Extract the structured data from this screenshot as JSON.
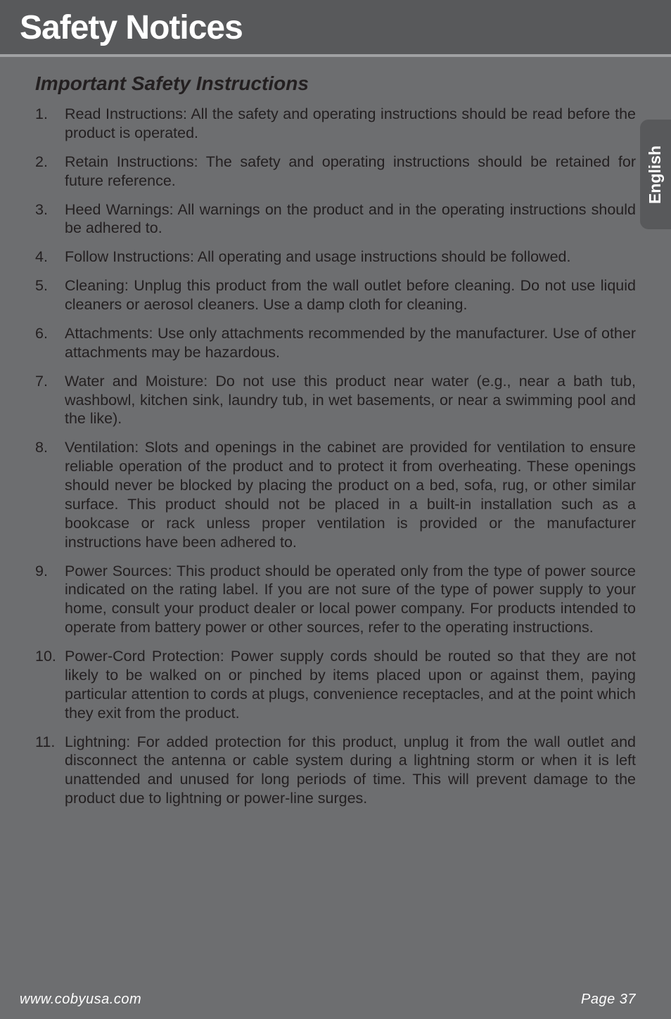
{
  "header": {
    "title": "Safety Notices"
  },
  "subtitle": "Important Safety Instructions",
  "sideTab": {
    "label": "English"
  },
  "instructions": [
    {
      "num": "1.",
      "text": "Read Instructions: All the safety and operating instructions should be read before the product is operated."
    },
    {
      "num": "2.",
      "text": "Retain Instructions: The safety and operating instructions should be retained for future reference."
    },
    {
      "num": "3.",
      "text": "Heed Warnings: All warnings on the product and in the operating instructions should be adhered to."
    },
    {
      "num": "4.",
      "text": "Follow Instructions: All operating and usage instructions should be followed."
    },
    {
      "num": "5.",
      "text": "Cleaning: Unplug this product from the wall outlet before cleaning. Do not use liquid cleaners or aerosol cleaners. Use a damp cloth for cleaning."
    },
    {
      "num": "6.",
      "text": "Attachments: Use only attachments recommended by the manufacturer. Use of other attachments may be hazardous."
    },
    {
      "num": "7.",
      "text": "Water and Moisture: Do not use this product near water (e.g., near a bath tub, washbowl, kitchen sink, laundry tub, in wet basements, or near a swimming pool and the like)."
    },
    {
      "num": "8.",
      "text": "Ventilation: Slots and openings in the cabinet are provided for ventilation to ensure reliable operation of the product and to protect it from overheating. These openings should never be blocked by placing the product on a bed, sofa, rug, or other similar surface. This product should not be placed in a built-in installation such as a bookcase or rack unless proper ventilation is provided or the manufacturer instructions have been adhered to."
    },
    {
      "num": "9.",
      "text": "Power Sources: This product should be operated only from the type of power source indicated on the rating label. If you are not sure of the type of power supply to your home, consult your product dealer or local power company. For products intended to operate from battery power or other sources, refer to the operating instructions."
    },
    {
      "num": "10.",
      "text": "Power-Cord Protection:  Power supply cords should be routed so that they are not likely to be walked on or pinched by items placed upon or against them, paying particular attention to cords at plugs, convenience receptacles, and at the point which they exit from the product."
    },
    {
      "num": "11.",
      "text": "Lightning: For added protection for this product, unplug it from the wall outlet and disconnect the antenna or cable system during a lightning storm or when it is left unattended and unused for long periods of time. This will prevent damage to the product due to lightning or power-line surges."
    }
  ],
  "footer": {
    "url": "www.cobyusa.com",
    "page": "Page 37"
  }
}
